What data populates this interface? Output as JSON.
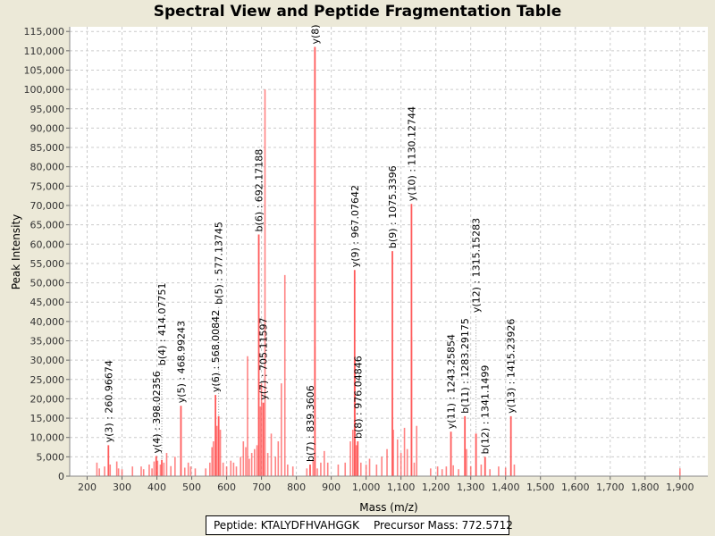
{
  "chart_data": {
    "type": "bar",
    "title": "Spectral View and Peptide Fragmentation Table",
    "xlabel": "Mass (m/z)",
    "ylabel": "Peak Intensity",
    "xlim": [
      150,
      1980
    ],
    "ylim": [
      0,
      116200
    ],
    "xticks": [
      200,
      300,
      400,
      500,
      600,
      700,
      800,
      900,
      1000,
      1100,
      1200,
      1300,
      1400,
      1500,
      1600,
      1700,
      1800,
      1900
    ],
    "xtick_labels": [
      "200",
      "300",
      "400",
      "500",
      "600",
      "700",
      "800",
      "900",
      "1,000",
      "1,100",
      "1,200",
      "1,300",
      "1,400",
      "1,500",
      "1,600",
      "1,700",
      "1,800",
      "1,900"
    ],
    "yticks": [
      0,
      5000,
      10000,
      15000,
      20000,
      25000,
      30000,
      35000,
      40000,
      45000,
      50000,
      55000,
      60000,
      65000,
      70000,
      75000,
      80000,
      85000,
      90000,
      95000,
      100000,
      105000,
      110000,
      115000
    ],
    "ytick_labels": [
      "0",
      "5,000",
      "10,000",
      "15,000",
      "20,000",
      "25,000",
      "30,000",
      "35,000",
      "40,000",
      "45,000",
      "50,000",
      "55,000",
      "60,000",
      "65,000",
      "70,000",
      "75,000",
      "80,000",
      "85,000",
      "90,000",
      "95,000",
      "100,000",
      "105,000",
      "110,000",
      "115,000"
    ],
    "grid": true,
    "color": "#ff5a5a",
    "annotated_peaks": [
      {
        "mz": 260.97,
        "intensity": 8000,
        "label": "y(3) : 260.96674"
      },
      {
        "mz": 398.02,
        "intensity": 5200,
        "label": "y(4) : 398.02356"
      },
      {
        "mz": 414.08,
        "intensity": 4200,
        "label": "b(4) : 414.07751"
      },
      {
        "mz": 468.99,
        "intensity": 18200,
        "label": "y(5) : 468.99243"
      },
      {
        "mz": 568.01,
        "intensity": 21000,
        "label": "y(6) : 568.00842"
      },
      {
        "mz": 577.14,
        "intensity": 15500,
        "label": "b(5) : 577.13745"
      },
      {
        "mz": 692.17,
        "intensity": 62500,
        "label": "b(6) : 692.17188"
      },
      {
        "mz": 705.12,
        "intensity": 19000,
        "label": "y(7) : 705.11597"
      },
      {
        "mz": 839.36,
        "intensity": 3000,
        "label": "b(7) : 839.3606"
      },
      {
        "mz": 853.2,
        "intensity": 111000,
        "label": "y(8)"
      },
      {
        "mz": 967.08,
        "intensity": 53300,
        "label": "y(9) : 967.07642"
      },
      {
        "mz": 976.05,
        "intensity": 9000,
        "label": "b(8) : 976.04846"
      },
      {
        "mz": 1075.34,
        "intensity": 58200,
        "label": "b(9) : 1075.3396"
      },
      {
        "mz": 1130.13,
        "intensity": 70400,
        "label": "y(10) : 1130.12744"
      },
      {
        "mz": 1243.26,
        "intensity": 11500,
        "label": "y(11) : 1243.25854"
      },
      {
        "mz": 1283.29,
        "intensity": 15500,
        "label": "b(11) : 1283.29175"
      },
      {
        "mz": 1315.15,
        "intensity": 11000,
        "label": "y(12) : 1315.15283"
      },
      {
        "mz": 1341.15,
        "intensity": 5000,
        "label": "b(12) : 1341.1499"
      },
      {
        "mz": 1415.24,
        "intensity": 15500,
        "label": "y(13) : 1415.23926"
      }
    ],
    "other_peaks": [
      [
        228,
        3500
      ],
      [
        235,
        2000
      ],
      [
        250,
        2500
      ],
      [
        266,
        3000
      ],
      [
        285,
        3800
      ],
      [
        290,
        2000
      ],
      [
        300,
        1800
      ],
      [
        330,
        2500
      ],
      [
        355,
        2500
      ],
      [
        362,
        1800
      ],
      [
        378,
        3000
      ],
      [
        386,
        2000
      ],
      [
        392,
        3800
      ],
      [
        402,
        4000
      ],
      [
        410,
        3000
      ],
      [
        420,
        3500
      ],
      [
        428,
        6000
      ],
      [
        440,
        2600
      ],
      [
        452,
        5000
      ],
      [
        480,
        2200
      ],
      [
        490,
        3500
      ],
      [
        497,
        2500
      ],
      [
        510,
        2000
      ],
      [
        540,
        2000
      ],
      [
        552,
        3500
      ],
      [
        558,
        7500
      ],
      [
        562,
        9000
      ],
      [
        572,
        13000
      ],
      [
        582,
        12000
      ],
      [
        590,
        3500
      ],
      [
        600,
        2500
      ],
      [
        612,
        4000
      ],
      [
        620,
        3500
      ],
      [
        628,
        2500
      ],
      [
        640,
        5000
      ],
      [
        648,
        9000
      ],
      [
        655,
        7500
      ],
      [
        660,
        31000
      ],
      [
        665,
        4500
      ],
      [
        672,
        6000
      ],
      [
        680,
        7000
      ],
      [
        687,
        8000
      ],
      [
        697,
        18000
      ],
      [
        700,
        24000
      ],
      [
        710,
        100000
      ],
      [
        718,
        6000
      ],
      [
        728,
        11000
      ],
      [
        740,
        5000
      ],
      [
        748,
        9000
      ],
      [
        757,
        24000
      ],
      [
        767,
        52000
      ],
      [
        775,
        3000
      ],
      [
        790,
        2500
      ],
      [
        830,
        2000
      ],
      [
        848,
        4000
      ],
      [
        853,
        33500
      ],
      [
        860,
        2000
      ],
      [
        870,
        3500
      ],
      [
        880,
        6500
      ],
      [
        890,
        3500
      ],
      [
        920,
        3000
      ],
      [
        940,
        3500
      ],
      [
        955,
        9000
      ],
      [
        962,
        12000
      ],
      [
        968,
        30000
      ],
      [
        972,
        8000
      ],
      [
        985,
        3500
      ],
      [
        1000,
        3000
      ],
      [
        1010,
        4500
      ],
      [
        1030,
        3000
      ],
      [
        1045,
        5000
      ],
      [
        1060,
        7000
      ],
      [
        1078,
        12000
      ],
      [
        1090,
        9500
      ],
      [
        1100,
        6000
      ],
      [
        1110,
        12500
      ],
      [
        1118,
        7000
      ],
      [
        1130,
        36000
      ],
      [
        1138,
        3500
      ],
      [
        1145,
        13000
      ],
      [
        1185,
        2000
      ],
      [
        1205,
        2500
      ],
      [
        1218,
        1800
      ],
      [
        1230,
        2500
      ],
      [
        1250,
        2800
      ],
      [
        1265,
        1800
      ],
      [
        1288,
        7000
      ],
      [
        1300,
        2600
      ],
      [
        1330,
        3000
      ],
      [
        1355,
        1800
      ],
      [
        1380,
        2500
      ],
      [
        1400,
        2200
      ],
      [
        1425,
        3000
      ],
      [
        1900,
        2000
      ]
    ]
  },
  "legend": {
    "peptide": "Peptide: KTALYDFHVAHGGK",
    "precursor": "Precursor Mass: 772.5712"
  }
}
